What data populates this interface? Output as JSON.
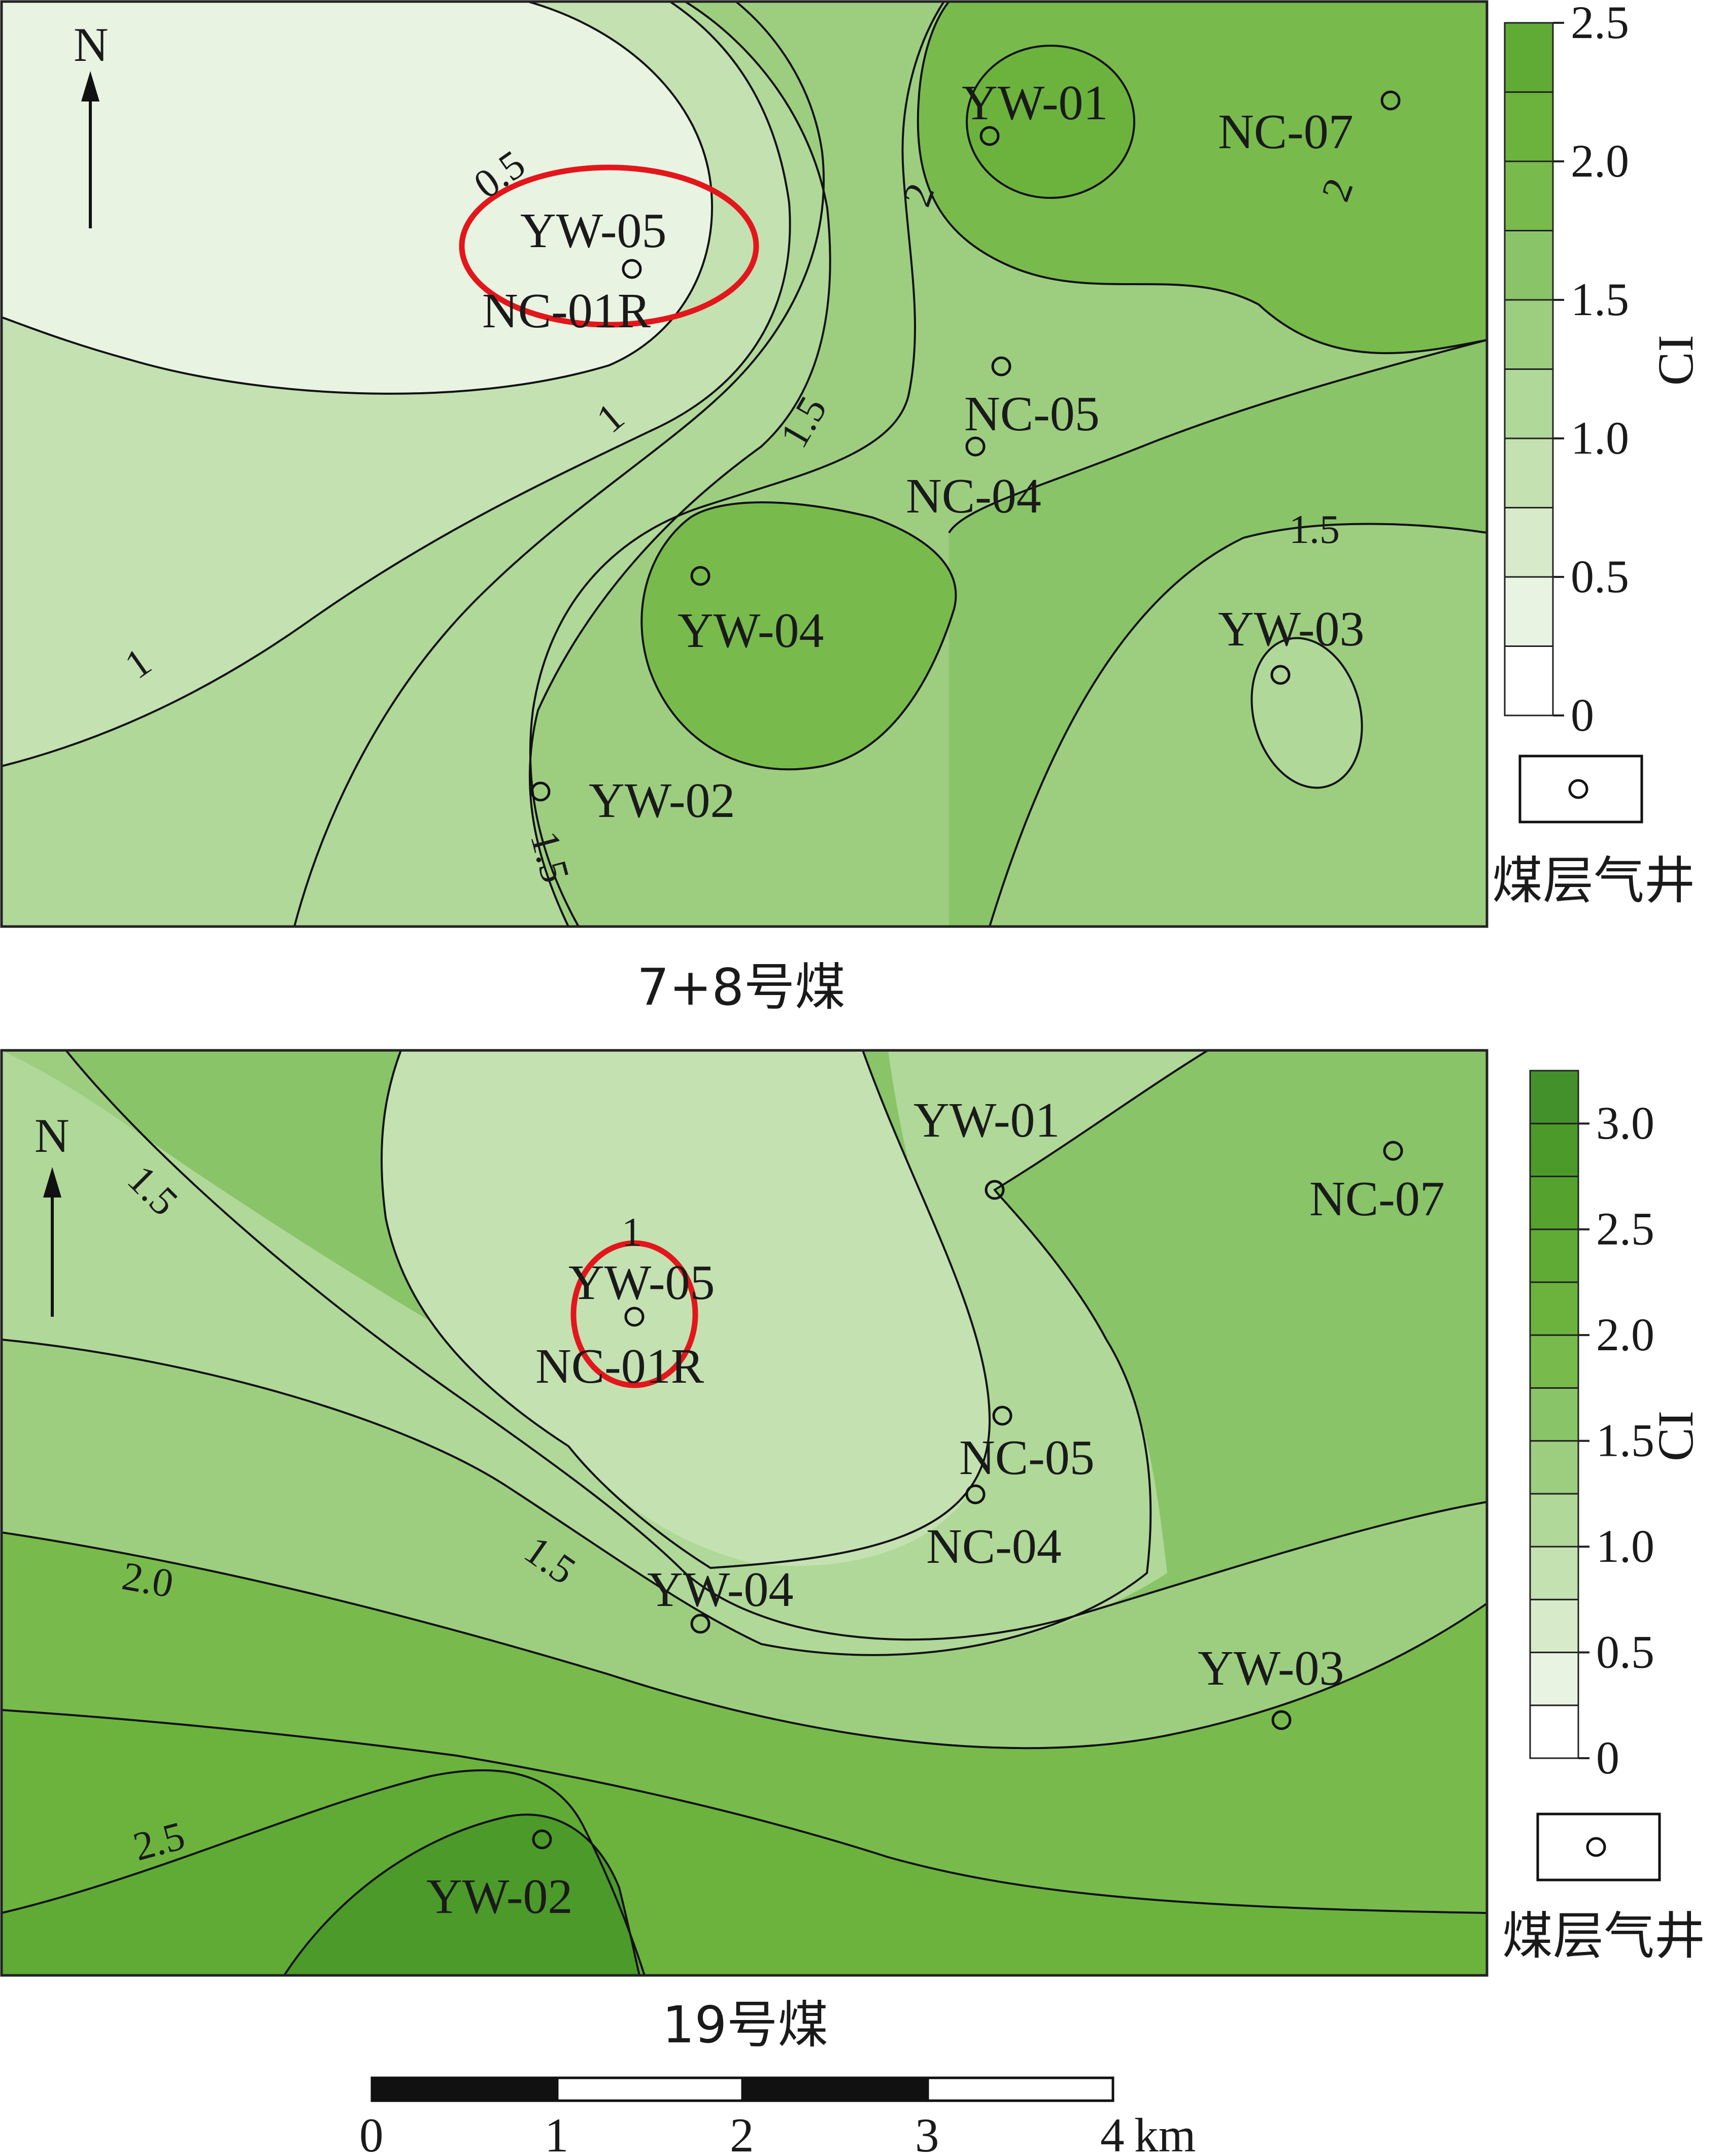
{
  "maps": [
    {
      "id": "map-7-8",
      "title": "7+8号煤",
      "north_label": "N",
      "wells": [
        {
          "name": "YW-01"
        },
        {
          "name": "NC-07"
        },
        {
          "name": "YW-05"
        },
        {
          "name": "NC-01R"
        },
        {
          "name": "NC-05"
        },
        {
          "name": "NC-04"
        },
        {
          "name": "YW-04"
        },
        {
          "name": "YW-03"
        },
        {
          "name": "YW-02"
        }
      ],
      "contour_labels": [
        "0.5",
        "1",
        "1",
        "1.5",
        "1.5",
        "1.5",
        "2",
        "2"
      ],
      "legend": {
        "axis_label": "CI",
        "ticks": [
          "0",
          "0.5",
          "1.0",
          "1.5",
          "2.0",
          "2.5"
        ],
        "colors": [
          "#ffffff",
          "#e8f3e2",
          "#d7eac9",
          "#c4e1b1",
          "#b0d898",
          "#9dce80",
          "#89c468",
          "#78bb4c",
          "#6cb33e",
          "#5fab35"
        ],
        "well_symbol_label": "煤层气井"
      }
    },
    {
      "id": "map-19",
      "title": "19号煤",
      "north_label": "N",
      "wells": [
        {
          "name": "YW-01"
        },
        {
          "name": "NC-07"
        },
        {
          "name": "YW-05"
        },
        {
          "name": "NC-01R"
        },
        {
          "name": "NC-05"
        },
        {
          "name": "NC-04"
        },
        {
          "name": "YW-04"
        },
        {
          "name": "YW-03"
        },
        {
          "name": "YW-02"
        }
      ],
      "contour_labels": [
        "1",
        "1.5",
        "1.5",
        "2.0",
        "2.5"
      ],
      "legend": {
        "axis_label": "CI",
        "ticks": [
          "0",
          "0.5",
          "1.0",
          "1.5",
          "2.0",
          "2.5",
          "3.0"
        ],
        "colors": [
          "#ffffff",
          "#e8f3e2",
          "#d7eac9",
          "#c4e1b1",
          "#b0d898",
          "#9dce80",
          "#89c468",
          "#78bb4c",
          "#6cb33e",
          "#5fab35",
          "#55a22f",
          "#4c9a2a",
          "#43912a"
        ],
        "well_symbol_label": "煤层气井"
      }
    }
  ],
  "scale_bar": {
    "ticks": [
      "0",
      "1",
      "2",
      "3",
      "4"
    ],
    "unit": "km"
  }
}
